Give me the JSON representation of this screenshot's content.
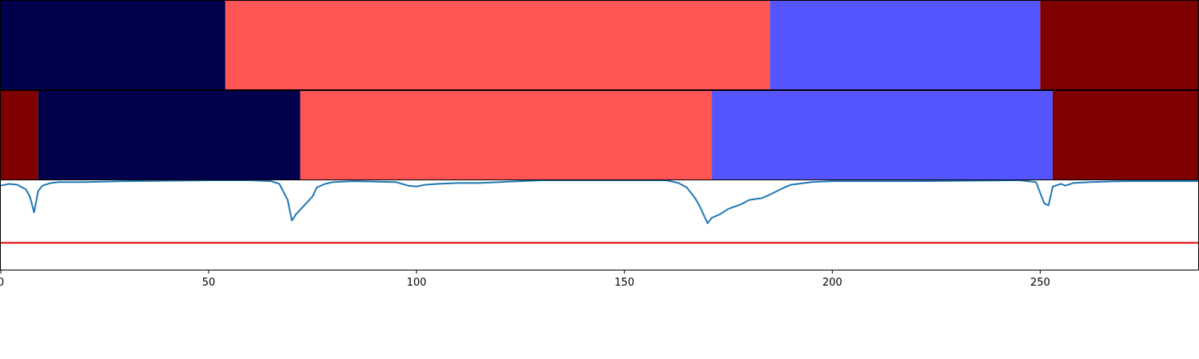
{
  "chart_data": {
    "type": "segmentation",
    "xlim": [
      0,
      288
    ],
    "xticks": [
      0,
      50,
      100,
      150,
      200,
      250
    ],
    "colors": {
      "class_0": "#00004d",
      "class_1": "#ff5555",
      "class_2": "#5555ff",
      "class_3": "#7f0000",
      "line": "#1f77b4",
      "threshold": "#dd0000"
    },
    "rows": [
      {
        "segments": [
          {
            "start": 0,
            "end": 54,
            "class": "class_0"
          },
          {
            "start": 54,
            "end": 185,
            "class": "class_1"
          },
          {
            "start": 185,
            "end": 250,
            "class": "class_2"
          },
          {
            "start": 250,
            "end": 288,
            "class": "class_3"
          }
        ]
      },
      {
        "segments": [
          {
            "start": 0,
            "end": 9,
            "class": "class_3"
          },
          {
            "start": 9,
            "end": 72,
            "class": "class_0"
          },
          {
            "start": 72,
            "end": 171,
            "class": "class_1"
          },
          {
            "start": 171,
            "end": 253,
            "class": "class_2"
          },
          {
            "start": 253,
            "end": 288,
            "class": "class_3"
          }
        ]
      }
    ],
    "confidence": {
      "ylim": [
        0,
        1
      ],
      "threshold": 0.3,
      "x": [
        0,
        2,
        4,
        6,
        7,
        8,
        9,
        10,
        12,
        14,
        16,
        20,
        30,
        50,
        60,
        65,
        67,
        69,
        70,
        71,
        73,
        75,
        76,
        78,
        80,
        85,
        95,
        98,
        100,
        102,
        105,
        110,
        115,
        120,
        125,
        130,
        160,
        163,
        165,
        167,
        168,
        169,
        170,
        171,
        173,
        175,
        178,
        180,
        183,
        185,
        188,
        190,
        195,
        200,
        220,
        245,
        249,
        250,
        251,
        252,
        253,
        255,
        256,
        258,
        262,
        270,
        288
      ],
      "y": [
        0.94,
        0.96,
        0.95,
        0.9,
        0.82,
        0.64,
        0.88,
        0.94,
        0.97,
        0.98,
        0.98,
        0.98,
        0.99,
        1.0,
        1.0,
        0.99,
        0.96,
        0.78,
        0.55,
        0.62,
        0.72,
        0.82,
        0.92,
        0.96,
        0.98,
        0.99,
        0.98,
        0.94,
        0.93,
        0.95,
        0.96,
        0.97,
        0.97,
        0.98,
        0.99,
        1.0,
        1.0,
        0.97,
        0.92,
        0.8,
        0.72,
        0.62,
        0.52,
        0.58,
        0.62,
        0.68,
        0.73,
        0.78,
        0.8,
        0.84,
        0.91,
        0.95,
        0.98,
        0.99,
        0.99,
        1.0,
        0.98,
        0.86,
        0.74,
        0.72,
        0.93,
        0.96,
        0.94,
        0.97,
        0.98,
        0.99,
        0.99
      ]
    }
  }
}
